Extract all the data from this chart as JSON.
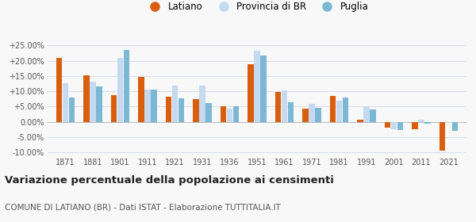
{
  "years": [
    1871,
    1881,
    1901,
    1911,
    1921,
    1931,
    1936,
    1951,
    1961,
    1971,
    1981,
    1991,
    2001,
    2011,
    2021
  ],
  "latiano": [
    20.8,
    15.2,
    8.8,
    14.6,
    8.3,
    7.3,
    5.0,
    18.8,
    9.8,
    4.4,
    8.5,
    0.7,
    -2.0,
    -2.5,
    -9.5
  ],
  "provincia_br": [
    12.7,
    13.0,
    20.8,
    10.5,
    11.9,
    11.9,
    4.2,
    23.2,
    10.4,
    5.8,
    6.9,
    5.0,
    -2.5,
    0.6,
    -0.3
  ],
  "puglia": [
    7.9,
    11.5,
    23.5,
    10.5,
    7.7,
    6.0,
    5.1,
    21.6,
    6.3,
    4.6,
    8.0,
    4.1,
    -2.8,
    -0.5,
    -3.0
  ],
  "color_latiano": "#d95f0e",
  "color_provincia": "#c5d9f0",
  "color_puglia": "#7ab8d4",
  "ylim": [
    -11.0,
    27.5
  ],
  "yticks": [
    -10.0,
    -5.0,
    0.0,
    5.0,
    10.0,
    15.0,
    20.0,
    25.0
  ],
  "title": "Variazione percentuale della popolazione ai censimenti",
  "subtitle": "COMUNE DI LATIANO (BR) - Dati ISTAT - Elaborazione TUTTITALIA.IT",
  "legend_labels": [
    "Latiano",
    "Provincia di BR",
    "Puglia"
  ],
  "background_color": "#f8f8f8",
  "grid_color": "#d8dde8"
}
